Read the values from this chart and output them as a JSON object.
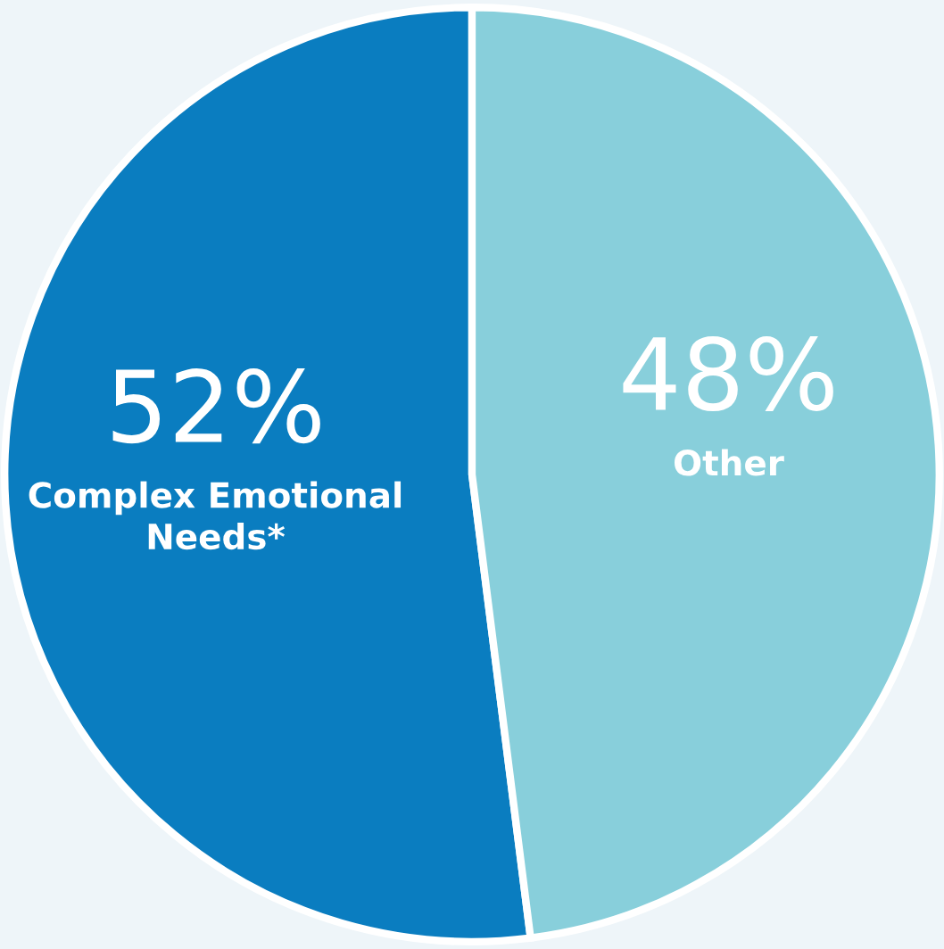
{
  "chart_data": {
    "type": "pie",
    "categories": [
      "Complex Emotional Needs*",
      "Other"
    ],
    "values": [
      52,
      48
    ],
    "colors": [
      "#0a7dc0",
      "#88cfdb"
    ],
    "value_labels": [
      "52%",
      "48%"
    ]
  }
}
